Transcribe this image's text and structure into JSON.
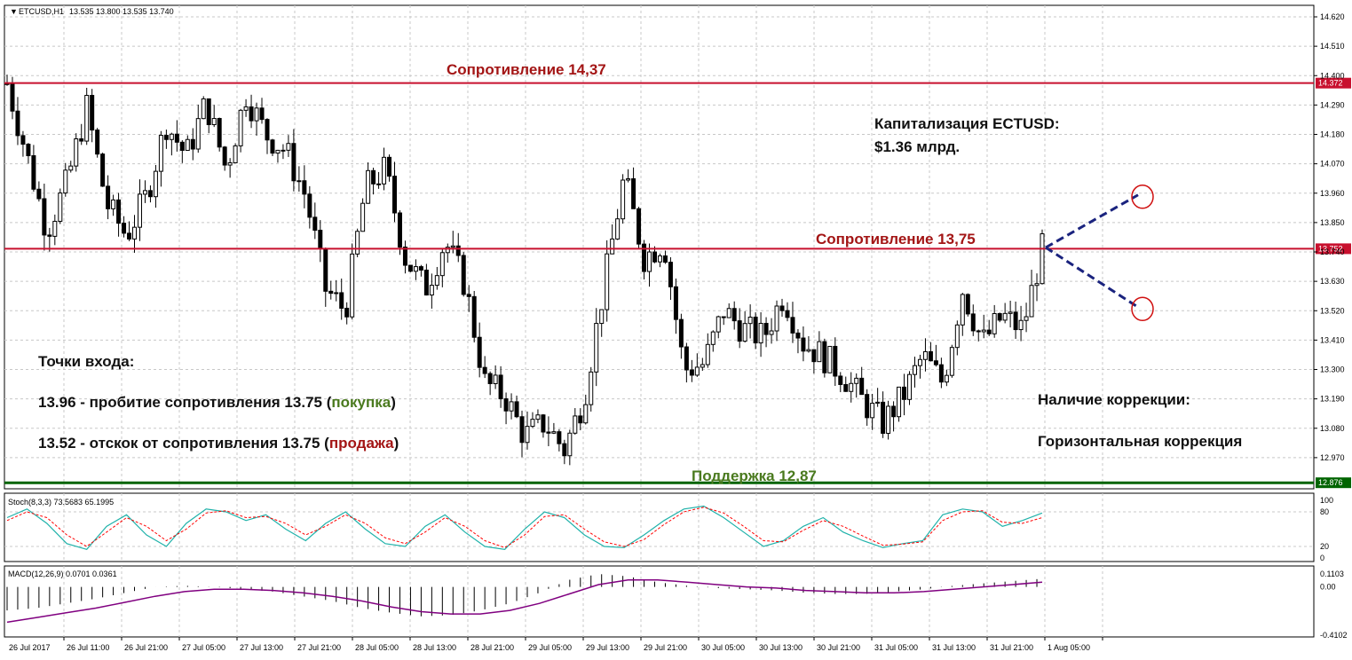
{
  "header": {
    "symbol": "ETCUSD,H1",
    "ohlc": "13.535 13.800 13.535 13.740"
  },
  "colors": {
    "resistance": "#c8102e",
    "support": "#006400",
    "arrow": "#1a237e",
    "stoch_main": "#20b2aa",
    "stoch_signal": "#ff0000",
    "macd_signal": "#800080",
    "text_red": "#a31515",
    "text_green": "#4a7a1e"
  },
  "chart_data": {
    "type": "candlestick",
    "price_axis": {
      "min": 12.87,
      "max": 14.62,
      "ticks": [
        "14.620",
        "14.510",
        "14.400",
        "14.290",
        "14.180",
        "14.070",
        "13.960",
        "13.850",
        "13.740",
        "13.630",
        "13.520",
        "13.410",
        "13.300",
        "13.190",
        "13.080",
        "12.970"
      ]
    },
    "x_ticks": [
      "26 Jul 2017",
      "26 Jul 11:00",
      "26 Jul 21:00",
      "27 Jul 05:00",
      "27 Jul 13:00",
      "27 Jul 21:00",
      "28 Jul 05:00",
      "28 Jul 13:00",
      "28 Jul 21:00",
      "29 Jul 05:00",
      "29 Jul 13:00",
      "29 Jul 21:00",
      "30 Jul 05:00",
      "30 Jul 13:00",
      "30 Jul 21:00",
      "31 Jul 05:00",
      "31 Jul 13:00",
      "31 Jul 21:00",
      "1 Aug 05:00"
    ],
    "close_path": [
      14.37,
      14.1,
      13.82,
      14.0,
      14.28,
      13.92,
      13.8,
      13.95,
      14.22,
      14.1,
      14.3,
      14.05,
      14.33,
      14.18,
      14.12,
      13.95,
      13.6,
      13.52,
      13.98,
      14.05,
      13.72,
      13.6,
      13.78,
      13.62,
      13.25,
      13.2,
      13.05,
      13.1,
      13.0,
      13.2,
      13.62,
      14.02,
      13.72,
      13.78,
      13.3,
      13.32,
      13.52,
      13.45,
      13.42,
      13.58,
      13.4,
      13.35,
      13.28,
      13.18,
      13.1,
      13.2,
      13.35,
      13.25,
      13.6,
      13.4,
      13.5,
      13.45,
      13.75
    ],
    "resistance_levels": [
      {
        "label": "Сопротивление 14,37",
        "value": 14.372,
        "axis_label": "14.372"
      },
      {
        "label": "Сопротивление 13,75",
        "value": 13.752,
        "axis_label": "13.752"
      }
    ],
    "support_levels": [
      {
        "label": "Поддержка 12,87",
        "value": 12.876,
        "axis_label": "12.876"
      }
    ],
    "scenarios": [
      {
        "from": 13.75,
        "to": 13.96,
        "direction": "up"
      },
      {
        "from": 13.75,
        "to": 13.52,
        "direction": "down"
      }
    ],
    "stochastic": {
      "label": "Stoch(8,3,3) 73.5683 65.1995",
      "ticks": [
        "100",
        "80",
        "20",
        "0"
      ],
      "main": [
        70,
        85,
        60,
        25,
        15,
        55,
        75,
        40,
        20,
        60,
        85,
        80,
        65,
        75,
        50,
        30,
        60,
        80,
        50,
        25,
        20,
        55,
        75,
        45,
        20,
        15,
        50,
        80,
        70,
        40,
        20,
        18,
        40,
        65,
        85,
        90,
        70,
        45,
        20,
        30,
        55,
        70,
        45,
        30,
        18,
        25,
        30,
        75,
        85,
        80,
        55,
        65,
        78
      ],
      "signal": [
        65,
        80,
        70,
        40,
        20,
        45,
        70,
        55,
        30,
        50,
        78,
        82,
        70,
        72,
        60,
        40,
        55,
        75,
        60,
        35,
        25,
        45,
        70,
        55,
        30,
        18,
        40,
        72,
        75,
        50,
        28,
        20,
        32,
        58,
        80,
        88,
        78,
        55,
        30,
        28,
        48,
        65,
        55,
        38,
        22,
        24,
        28,
        65,
        80,
        82,
        62,
        60,
        70
      ]
    },
    "macd": {
      "label": "MACD(12,26,9) 0.0701 0.0361",
      "ticks": [
        "0.1103",
        "0.00",
        "-0.4102"
      ],
      "hist": [
        -0.2,
        -0.18,
        -0.14,
        -0.1,
        -0.05,
        0,
        0.01,
        0.0,
        -0.02,
        -0.04,
        -0.08,
        -0.12,
        -0.18,
        -0.22,
        -0.25,
        -0.24,
        -0.2,
        -0.14,
        -0.05,
        0.06,
        0.11,
        0.09,
        0.04,
        0.01,
        -0.01,
        -0.02,
        -0.03,
        -0.05,
        -0.06,
        -0.06,
        -0.04,
        -0.02,
        0.01,
        0.03,
        0.05,
        0.07
      ],
      "signal": [
        -0.3,
        -0.26,
        -0.22,
        -0.18,
        -0.13,
        -0.08,
        -0.04,
        -0.02,
        -0.02,
        -0.03,
        -0.05,
        -0.08,
        -0.12,
        -0.17,
        -0.21,
        -0.23,
        -0.23,
        -0.2,
        -0.14,
        -0.06,
        0.02,
        0.06,
        0.06,
        0.04,
        0.02,
        0.0,
        -0.01,
        -0.03,
        -0.04,
        -0.05,
        -0.05,
        -0.04,
        -0.02,
        0.0,
        0.02,
        0.04
      ]
    }
  },
  "annotations": {
    "capitalization_title": "Капитализация ECTUSD:",
    "capitalization_value": "$1.36 млрд.",
    "entry_title": "Точки входа:",
    "entry1_prefix": "13.96 - пробитие сопротивления 13.75 (",
    "entry1_action": "покупка",
    "entry1_suffix": ")",
    "entry2_prefix": "13.52 - отскок от сопротивления 13.75 (",
    "entry2_action": "продажа",
    "entry2_suffix": ")",
    "correction_title": "Наличие коррекции:",
    "correction_value": "Горизонтальная коррекция"
  }
}
